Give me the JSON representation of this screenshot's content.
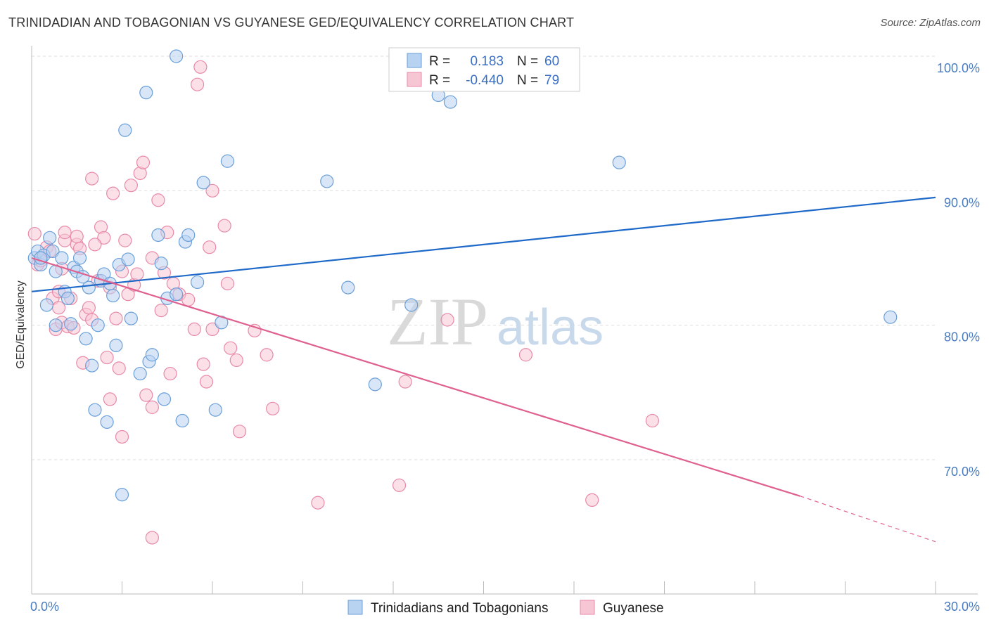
{
  "title": "TRINIDADIAN AND TOBAGONIAN VS GUYANESE GED/EQUIVALENCY CORRELATION CHART",
  "source": "Source: ZipAtlas.com",
  "watermark": {
    "zip": "ZIP",
    "atlas": "atlas"
  },
  "colors": {
    "blue": "#6a9fd8",
    "blue_fill": "#b8d2f2",
    "blue_line": "#1f6ac9",
    "pink": "#e88aa8",
    "pink_fill": "#f7c6d5",
    "pink_line": "#e0608f",
    "tick_text": "#4a7cc0",
    "grid": "#dddddd"
  },
  "legend": {
    "r_label": "R =",
    "n_label": "N =",
    "rows": [
      {
        "r": "0.183",
        "n": "60",
        "series": "blue"
      },
      {
        "r": "-0.440",
        "n": "79",
        "series": "pink"
      }
    ]
  },
  "bottom_legend": [
    {
      "label": "Trinidadians and Tobagonians",
      "series": "blue"
    },
    {
      "label": "Guyanese",
      "series": "pink"
    }
  ],
  "chart_data": {
    "type": "scatter",
    "title": "TRINIDADIAN AND TOBAGONIAN VS GUYANESE GED/EQUIVALENCY CORRELATION CHART",
    "xlabel": "",
    "ylabel": "GED/Equivalency",
    "x_tick_labels": [
      "0.0%",
      "30.0%"
    ],
    "y_tick_labels": [
      "100.0%",
      "90.0%",
      "80.0%",
      "70.0%"
    ],
    "y_ticks": [
      100,
      90,
      80,
      70
    ],
    "xlim": [
      0,
      30
    ],
    "ylim": [
      61.5,
      101
    ],
    "grid": true,
    "legend_position": "top-center",
    "series": [
      {
        "name": "Trinidadians and Tobagonians",
        "color": "blue",
        "r": 0.183,
        "n": 60,
        "trend": {
          "x": [
            0,
            30
          ],
          "y": [
            82.5,
            89.5
          ]
        },
        "points": [
          [
            0.1,
            85.0
          ],
          [
            0.2,
            85.5
          ],
          [
            0.3,
            84.5
          ],
          [
            0.4,
            85.2
          ],
          [
            0.5,
            81.5
          ],
          [
            0.6,
            86.5
          ],
          [
            0.7,
            85.5
          ],
          [
            0.8,
            84.0
          ],
          [
            0.8,
            80.0
          ],
          [
            1.0,
            85.0
          ],
          [
            1.1,
            82.5
          ],
          [
            1.2,
            82.0
          ],
          [
            1.4,
            84.3
          ],
          [
            1.5,
            84.0
          ],
          [
            1.6,
            85.0
          ],
          [
            1.7,
            83.6
          ],
          [
            1.8,
            79.0
          ],
          [
            1.9,
            82.8
          ],
          [
            2.0,
            77.0
          ],
          [
            2.1,
            73.7
          ],
          [
            2.2,
            80.0
          ],
          [
            2.3,
            83.3
          ],
          [
            2.4,
            83.8
          ],
          [
            2.5,
            72.8
          ],
          [
            2.6,
            83.1
          ],
          [
            2.7,
            82.2
          ],
          [
            2.8,
            78.5
          ],
          [
            2.9,
            84.5
          ],
          [
            3.0,
            67.4
          ],
          [
            3.1,
            94.5
          ],
          [
            3.2,
            84.9
          ],
          [
            3.3,
            80.5
          ],
          [
            3.6,
            76.4
          ],
          [
            3.8,
            97.3
          ],
          [
            3.9,
            77.3
          ],
          [
            4.0,
            77.8
          ],
          [
            4.2,
            86.7
          ],
          [
            4.3,
            84.6
          ],
          [
            4.4,
            74.5
          ],
          [
            4.5,
            82.0
          ],
          [
            4.8,
            82.3
          ],
          [
            4.8,
            100.0
          ],
          [
            5.0,
            72.9
          ],
          [
            5.1,
            86.2
          ],
          [
            5.2,
            86.7
          ],
          [
            5.5,
            83.2
          ],
          [
            5.7,
            90.6
          ],
          [
            6.1,
            73.7
          ],
          [
            6.3,
            80.2
          ],
          [
            6.5,
            92.2
          ],
          [
            9.8,
            90.7
          ],
          [
            10.5,
            82.8
          ],
          [
            11.4,
            75.6
          ],
          [
            12.6,
            81.5
          ],
          [
            13.5,
            97.1
          ],
          [
            13.9,
            96.6
          ],
          [
            19.5,
            92.1
          ],
          [
            28.5,
            80.6
          ],
          [
            1.3,
            80.1
          ],
          [
            0.3,
            85.0
          ]
        ]
      },
      {
        "name": "Guyanese",
        "color": "pink",
        "r": -0.44,
        "n": 79,
        "trend": {
          "x": [
            0,
            25.5
          ],
          "y": [
            85.0,
            67.3
          ]
        },
        "trend_dashed": {
          "x": [
            25.5,
            30
          ],
          "y": [
            67.3,
            63.9
          ]
        },
        "points": [
          [
            0.1,
            86.8
          ],
          [
            0.2,
            84.5
          ],
          [
            0.3,
            85.0
          ],
          [
            0.5,
            85.8
          ],
          [
            0.6,
            85.5
          ],
          [
            0.7,
            82.0
          ],
          [
            0.8,
            79.7
          ],
          [
            0.9,
            81.3
          ],
          [
            1.0,
            84.2
          ],
          [
            1.0,
            80.2
          ],
          [
            1.1,
            86.3
          ],
          [
            1.2,
            79.9
          ],
          [
            1.3,
            82.0
          ],
          [
            1.4,
            79.8
          ],
          [
            1.5,
            86.0
          ],
          [
            1.5,
            86.6
          ],
          [
            1.6,
            85.7
          ],
          [
            1.7,
            77.2
          ],
          [
            1.8,
            80.8
          ],
          [
            1.9,
            81.3
          ],
          [
            2.0,
            80.4
          ],
          [
            2.0,
            90.9
          ],
          [
            2.2,
            83.3
          ],
          [
            2.3,
            87.3
          ],
          [
            2.4,
            86.5
          ],
          [
            2.5,
            77.6
          ],
          [
            2.6,
            74.5
          ],
          [
            2.6,
            82.8
          ],
          [
            2.7,
            89.8
          ],
          [
            2.8,
            80.5
          ],
          [
            2.9,
            76.8
          ],
          [
            3.0,
            71.7
          ],
          [
            3.1,
            86.3
          ],
          [
            3.2,
            82.3
          ],
          [
            3.3,
            90.4
          ],
          [
            3.4,
            83.0
          ],
          [
            3.5,
            83.8
          ],
          [
            3.6,
            91.3
          ],
          [
            3.7,
            92.1
          ],
          [
            3.8,
            74.8
          ],
          [
            4.0,
            85.0
          ],
          [
            4.0,
            73.9
          ],
          [
            4.2,
            89.3
          ],
          [
            4.3,
            81.1
          ],
          [
            4.4,
            83.9
          ],
          [
            4.5,
            86.9
          ],
          [
            4.6,
            76.4
          ],
          [
            4.7,
            83.1
          ],
          [
            4.9,
            82.3
          ],
          [
            5.2,
            81.9
          ],
          [
            5.4,
            79.7
          ],
          [
            5.5,
            97.9
          ],
          [
            5.6,
            99.2
          ],
          [
            5.7,
            77.1
          ],
          [
            5.8,
            75.8
          ],
          [
            5.9,
            85.8
          ],
          [
            6.0,
            79.7
          ],
          [
            6.4,
            87.4
          ],
          [
            6.5,
            83.1
          ],
          [
            6.6,
            78.3
          ],
          [
            6.8,
            77.4
          ],
          [
            6.9,
            72.1
          ],
          [
            7.4,
            79.6
          ],
          [
            7.8,
            77.8
          ],
          [
            8.0,
            73.8
          ],
          [
            9.5,
            66.8
          ],
          [
            12.2,
            68.1
          ],
          [
            12.4,
            75.8
          ],
          [
            13.8,
            80.4
          ],
          [
            16.4,
            77.8
          ],
          [
            18.6,
            67.0
          ],
          [
            20.6,
            72.9
          ],
          [
            4.0,
            64.2
          ],
          [
            1.1,
            86.9
          ],
          [
            2.1,
            86.0
          ],
          [
            3.0,
            84.0
          ],
          [
            0.9,
            82.5
          ],
          [
            6.0,
            90.0
          ],
          [
            0.3,
            84.8
          ]
        ]
      }
    ]
  }
}
